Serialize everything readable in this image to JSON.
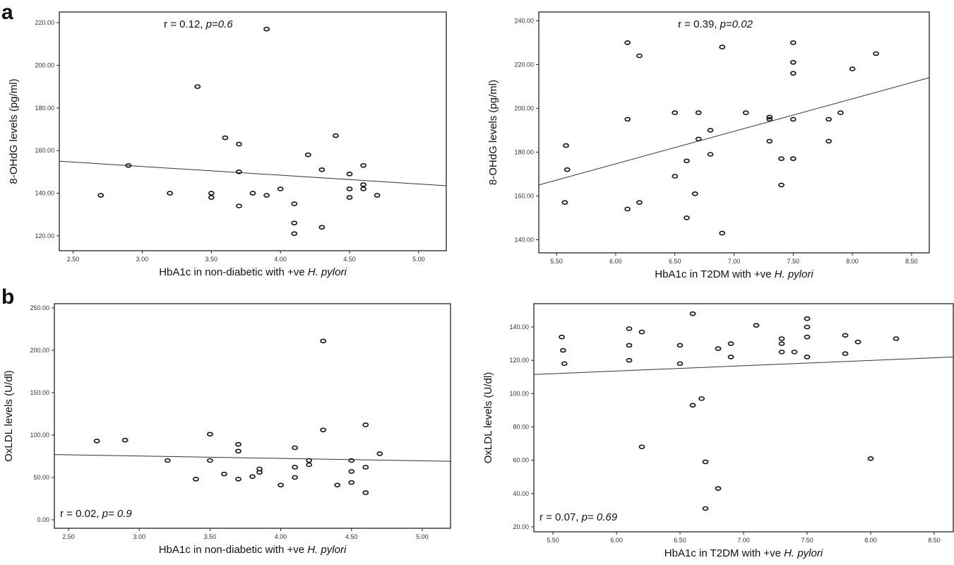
{
  "panel_labels": [
    "a",
    "b"
  ],
  "chart_data": [
    {
      "type": "scatter",
      "panel": "a",
      "xlabel_main": "HbA1c in non-diabetic with +ve ",
      "xlabel_italic": "H. pylori",
      "ylabel": "8-OHdG levels (pg/ml)",
      "annotation_main": "r = 0.12, ",
      "annotation_italic": "p=0.6",
      "xlim": [
        2.4,
        5.2
      ],
      "ylim": [
        113,
        225
      ],
      "xticks": [
        "2.50",
        "3.00",
        "3.50",
        "4.00",
        "4.50",
        "5.00"
      ],
      "xtick_values": [
        2.5,
        3.0,
        3.5,
        4.0,
        4.5,
        5.0
      ],
      "yticks": [
        "120.00",
        "140.00",
        "160.00",
        "180.00",
        "200.00",
        "220.00"
      ],
      "ytick_values": [
        120,
        140,
        160,
        180,
        200,
        220
      ],
      "fit": {
        "x": [
          2.4,
          5.2
        ],
        "y": [
          155,
          143.5
        ]
      },
      "x": [
        2.7,
        2.9,
        3.2,
        3.4,
        3.5,
        3.5,
        3.6,
        3.7,
        3.7,
        3.7,
        3.8,
        3.9,
        3.9,
        4.0,
        4.1,
        4.1,
        4.1,
        4.2,
        4.3,
        4.3,
        4.4,
        4.5,
        4.5,
        4.5,
        4.6,
        4.6,
        4.6,
        4.7
      ],
      "y": [
        139,
        153,
        140,
        190,
        140,
        138,
        166,
        163,
        150,
        134,
        140,
        139,
        217,
        142,
        135,
        126,
        121,
        158,
        151,
        124,
        167,
        149,
        142,
        138,
        153,
        144,
        142,
        139
      ]
    },
    {
      "type": "scatter",
      "panel": "a",
      "xlabel_main": "HbA1c in T2DM with +ve ",
      "xlabel_italic": "H. pylori",
      "ylabel": "8-OHdG levels (pg/ml)",
      "annotation_main": "r = 0.39, ",
      "annotation_italic": "p=0.02",
      "xlim": [
        5.35,
        8.65
      ],
      "ylim": [
        134,
        244
      ],
      "xticks": [
        "5.50",
        "6.00",
        "6.50",
        "7.00",
        "7.50",
        "8.00",
        "8.50"
      ],
      "xtick_values": [
        5.5,
        6.0,
        6.5,
        7.0,
        7.5,
        8.0,
        8.5
      ],
      "yticks": [
        "140.00",
        "160.00",
        "180.00",
        "200.00",
        "220.00",
        "240.00"
      ],
      "ytick_values": [
        140,
        160,
        180,
        200,
        220,
        240
      ],
      "fit": {
        "x": [
          5.35,
          8.65
        ],
        "y": [
          165,
          214
        ]
      },
      "x": [
        5.57,
        5.58,
        5.59,
        6.1,
        6.1,
        6.1,
        6.2,
        6.2,
        6.5,
        6.5,
        6.6,
        6.6,
        6.67,
        6.7,
        6.7,
        6.8,
        6.8,
        6.9,
        6.9,
        7.1,
        7.3,
        7.3,
        7.3,
        7.4,
        7.4,
        7.5,
        7.5,
        7.5,
        7.5,
        7.5,
        7.8,
        7.8,
        7.9,
        8.0,
        8.2
      ],
      "y": [
        157,
        183,
        172,
        230,
        195,
        154,
        224,
        157,
        198,
        169,
        176,
        150,
        161,
        198,
        186,
        190,
        179,
        143,
        228,
        198,
        196,
        195,
        185,
        165,
        177,
        230,
        221,
        216,
        195,
        177,
        195,
        185,
        198,
        218,
        225
      ]
    },
    {
      "type": "scatter",
      "panel": "b",
      "xlabel_main": "HbA1c in non-diabetic with +ve ",
      "xlabel_italic": "H. pylori",
      "ylabel": "OxLDL levels (U/dl)",
      "annotation_main": "r = 0.02, ",
      "annotation_italic": "p= 0.9",
      "xlim": [
        2.4,
        5.2
      ],
      "ylim": [
        -10,
        255
      ],
      "xticks": [
        "2.50",
        "3.00",
        "3.50",
        "4.00",
        "4.50",
        "5.00"
      ],
      "xtick_values": [
        2.5,
        3.0,
        3.5,
        4.0,
        4.5,
        5.0
      ],
      "yticks": [
        "0.00",
        "50.00",
        "100.00",
        "150.00",
        "200.00",
        "250.00"
      ],
      "ytick_values": [
        0,
        50,
        100,
        150,
        200,
        250
      ],
      "fit": {
        "x": [
          2.4,
          5.2
        ],
        "y": [
          77,
          69
        ]
      },
      "x": [
        2.7,
        2.9,
        3.2,
        3.4,
        3.5,
        3.5,
        3.6,
        3.7,
        3.7,
        3.7,
        3.8,
        3.85,
        3.85,
        4.0,
        4.1,
        4.1,
        4.1,
        4.2,
        4.2,
        4.3,
        4.3,
        4.4,
        4.5,
        4.5,
        4.5,
        4.6,
        4.6,
        4.6,
        4.7
      ],
      "y": [
        93,
        94,
        70,
        48,
        101,
        70,
        54,
        89,
        81,
        48,
        51,
        60,
        56,
        41,
        85,
        62,
        50,
        70,
        65,
        211,
        106,
        41,
        70,
        57,
        44,
        112,
        62,
        32,
        78
      ]
    },
    {
      "type": "scatter",
      "panel": "b",
      "xlabel_main": "HbA1c in T2DM with +ve ",
      "xlabel_italic": "H. pylori",
      "ylabel": "OxLDL levels (U/dl)",
      "annotation_main": "r = 0.07, ",
      "annotation_italic": "p= 0.69",
      "xlim": [
        5.35,
        8.65
      ],
      "ylim": [
        17,
        154
      ],
      "xticks": [
        "5.50",
        "6.00",
        "6.50",
        "7.00",
        "7.50",
        "8.00",
        "8.50"
      ],
      "xtick_values": [
        5.5,
        6.0,
        6.5,
        7.0,
        7.5,
        8.0,
        8.5
      ],
      "yticks": [
        "20.00",
        "40.00",
        "60.00",
        "80.00",
        "100.00",
        "120.00",
        "140.00"
      ],
      "ytick_values": [
        20,
        40,
        60,
        80,
        100,
        120,
        140
      ],
      "fit": {
        "x": [
          5.35,
          8.65
        ],
        "y": [
          111.5,
          122
        ]
      },
      "x": [
        5.57,
        5.58,
        5.59,
        6.1,
        6.1,
        6.1,
        6.2,
        6.2,
        6.5,
        6.5,
        6.6,
        6.6,
        6.67,
        6.7,
        6.7,
        6.8,
        6.8,
        6.9,
        6.9,
        7.1,
        7.3,
        7.3,
        7.3,
        7.4,
        7.5,
        7.5,
        7.5,
        7.5,
        7.8,
        7.8,
        7.9,
        8.0,
        8.2
      ],
      "y": [
        134,
        126,
        118,
        139,
        129,
        120,
        68,
        137,
        129,
        118,
        148,
        93,
        97,
        59,
        31,
        127,
        43,
        122,
        130,
        141,
        133,
        130,
        125,
        125,
        145,
        140,
        134,
        122,
        135,
        124,
        131,
        61,
        133
      ]
    }
  ]
}
